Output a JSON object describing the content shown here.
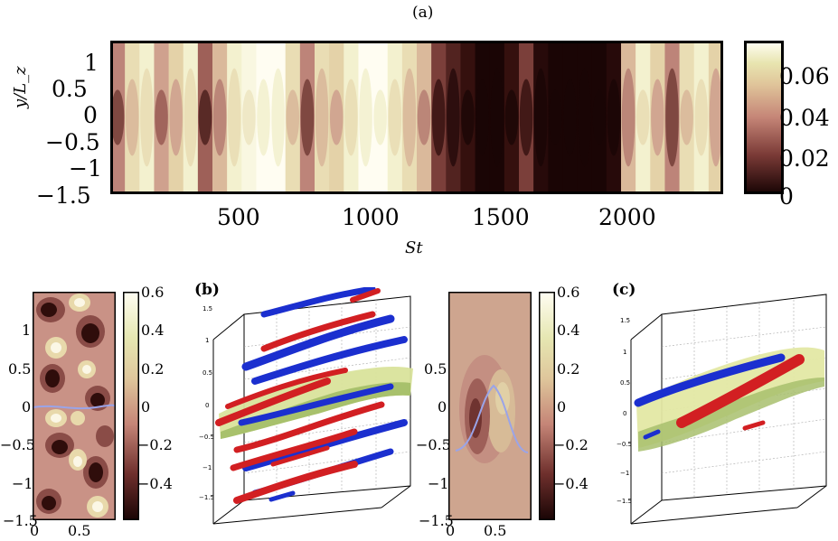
{
  "figure": {
    "panel_a_label": "(a)",
    "panel_b_label": "(b)",
    "panel_c_label": "(c)"
  },
  "chart_data": [
    {
      "type": "heatmap",
      "title": "(a)",
      "xlabel": "St",
      "ylabel": "y/L_z",
      "xlim": [
        0,
        2400
      ],
      "ylim": [
        -1.5,
        1.5
      ],
      "xticks": [
        "500",
        "1000",
        "1500",
        "2000"
      ],
      "yticks": [
        "1",
        "0.5",
        "0",
        "−0.5",
        "−1",
        "−1.5"
      ],
      "colorbar": {
        "ticks": [
          "0.06",
          "0.04",
          "0.02",
          "0"
        ],
        "range": [
          0,
          0.07
        ]
      },
      "band_values": [
        0.03,
        0.05,
        0.06,
        0.035,
        0.045,
        0.06,
        0.025,
        0.04,
        0.06,
        0.065,
        0.07,
        0.07,
        0.05,
        0.03,
        0.05,
        0.045,
        0.06,
        0.07,
        0.07,
        0.06,
        0.05,
        0.04,
        0.02,
        0.015,
        0.01,
        0.0,
        0.0,
        0.01,
        0.02,
        0.005,
        0.0,
        0.0,
        0.0,
        0.0,
        0.005,
        0.04,
        0.06,
        0.045,
        0.03,
        0.05,
        0.06,
        0.045
      ]
    },
    {
      "type": "heatmap",
      "title": "(b) left",
      "xlabel": "",
      "ylabel": "",
      "xticks": [
        "0",
        "0.5"
      ],
      "yticks": [
        "1",
        "0.5",
        "0",
        "−0.5",
        "−1",
        "−1.5"
      ],
      "colorbar": {
        "ticks": [
          "0.6",
          "0.4",
          "0.2",
          "0",
          "−0.2",
          "−0.4"
        ],
        "range": [
          -0.5,
          0.6
        ]
      }
    },
    {
      "type": "heatmap",
      "title": "(c) left",
      "xlabel": "",
      "ylabel": "",
      "xticks": [
        "0",
        "0.5"
      ],
      "yticks": [
        "0.5",
        "0",
        "−0.5",
        "−1",
        "−1.5"
      ],
      "colorbar": {
        "ticks": [
          "0.6",
          "0.4",
          "0.2",
          "0",
          "−0.2",
          "−0.4"
        ],
        "range": [
          -0.5,
          0.6
        ]
      }
    },
    {
      "type": "scatter",
      "title": "(b) 3D",
      "zticks": [
        "1.5",
        "1",
        "0.5",
        "0",
        "−0.5",
        "−1",
        "−1.5"
      ]
    },
    {
      "type": "scatter",
      "title": "(c) 3D",
      "zticks": [
        "1.5",
        "1",
        "0.5",
        "0",
        "−0.5",
        "−1",
        "−1.5"
      ]
    }
  ],
  "colors": {
    "dark": "#2a0a08",
    "mid": "#8b4a44",
    "pink": "#cd9a88",
    "beige": "#e6d6aa",
    "light": "#fbf8e8",
    "blue_vortex": "#1b2fcf",
    "red_vortex": "#d21f22",
    "streak": "#d8e39a",
    "profile_line": "#8f9ce8"
  }
}
